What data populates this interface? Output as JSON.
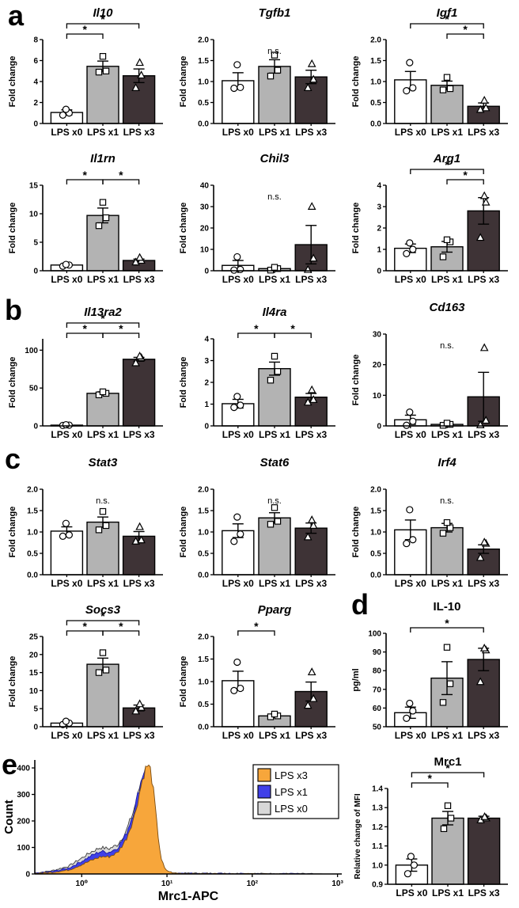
{
  "panels": {
    "a": "a",
    "b": "b",
    "c": "c",
    "d": "d",
    "e": "e"
  },
  "categories": [
    "LPS x0",
    "LPS x1",
    "LPS x3"
  ],
  "marker_shapes": [
    "circle",
    "square",
    "triangle"
  ],
  "colors": {
    "bar_fills": [
      "#ffffff",
      "#b3b3b3",
      "#3e3336"
    ],
    "bar_stroke": "#000000",
    "hist_orange": "#F7A63B",
    "hist_blue": "#4040E8",
    "hist_gray": "#D8D8D8"
  },
  "chart_data": [
    {
      "type": "bar",
      "panel": "a",
      "title": "Il10",
      "italic": true,
      "ylabel": "Fold change",
      "ylim": [
        0,
        8
      ],
      "yticks": [
        0,
        2,
        4,
        6,
        8
      ],
      "values": [
        1.05,
        5.45,
        4.55
      ],
      "errors": [
        0.25,
        0.5,
        0.65
      ],
      "points": [
        [
          0.8,
          1.0,
          1.35
        ],
        [
          4.9,
          5.0,
          6.4
        ],
        [
          3.4,
          4.6,
          5.8
        ]
      ],
      "sig": [
        {
          "a": 0,
          "b": 1,
          "label": "*",
          "level": 0
        },
        {
          "a": 0,
          "b": 2,
          "label": "*",
          "level": 1
        }
      ],
      "ns_label": null
    },
    {
      "type": "bar",
      "panel": "a",
      "title": "Tgfb1",
      "italic": true,
      "ylabel": "Fold change",
      "ylim": [
        0,
        2
      ],
      "yticks": [
        0,
        0.5,
        1,
        1.5,
        2
      ],
      "values": [
        1.02,
        1.36,
        1.11
      ],
      "errors": [
        0.19,
        0.16,
        0.16
      ],
      "points": [
        [
          0.84,
          0.86,
          1.4
        ],
        [
          1.13,
          1.27,
          1.63
        ],
        [
          0.85,
          1.05,
          1.42
        ]
      ],
      "sig": [],
      "ns_label": "n.s."
    },
    {
      "type": "bar",
      "panel": "a",
      "title": "Igf1",
      "italic": true,
      "ylabel": "Fold change",
      "ylim": [
        0,
        2
      ],
      "yticks": [
        0,
        0.5,
        1,
        1.5,
        2
      ],
      "values": [
        1.04,
        0.91,
        0.41
      ],
      "errors": [
        0.2,
        0.1,
        0.08
      ],
      "points": [
        [
          0.78,
          0.85,
          1.45
        ],
        [
          0.8,
          0.83,
          1.1
        ],
        [
          0.33,
          0.37,
          0.55
        ]
      ],
      "sig": [
        {
          "a": 0,
          "b": 2,
          "label": "*",
          "level": 1
        },
        {
          "a": 1,
          "b": 2,
          "label": "*",
          "level": 0
        }
      ],
      "ns_label": null
    },
    {
      "type": "bar",
      "panel": "a",
      "title": "Il1rn",
      "italic": true,
      "ylabel": "Fold change",
      "ylim": [
        0,
        15
      ],
      "yticks": [
        0,
        5,
        10,
        15
      ],
      "values": [
        1.0,
        9.7,
        1.8
      ],
      "errors": [
        0.15,
        1.3,
        0.25
      ],
      "points": [
        [
          0.8,
          1.0,
          1.1
        ],
        [
          7.9,
          9.3,
          12.0
        ],
        [
          1.5,
          1.8,
          2.3
        ]
      ],
      "sig": [
        {
          "a": 0,
          "b": 1,
          "label": "*",
          "level": 0
        },
        {
          "a": 1,
          "b": 2,
          "label": "*",
          "level": 0
        }
      ],
      "ns_label": null
    },
    {
      "type": "bar",
      "panel": "a",
      "title": "Chil3",
      "italic": true,
      "ylabel": "Fold change",
      "ylim": [
        0,
        40
      ],
      "yticks": [
        0,
        10,
        20,
        30,
        40
      ],
      "values": [
        2.5,
        1.0,
        12.2
      ],
      "errors": [
        2.3,
        0.6,
        9.0
      ],
      "points": [
        [
          0.3,
          0.6,
          6.5
        ],
        [
          0.3,
          1.0,
          1.6
        ],
        [
          0.5,
          5.8,
          30.0
        ]
      ],
      "sig": [],
      "ns_label": "n.s."
    },
    {
      "type": "bar",
      "panel": "a",
      "title": "Arg1",
      "italic": true,
      "ylabel": "Fold change",
      "ylim": [
        0,
        4
      ],
      "yticks": [
        0,
        1,
        2,
        3,
        4
      ],
      "values": [
        1.05,
        1.12,
        2.8
      ],
      "errors": [
        0.2,
        0.25,
        0.62
      ],
      "points": [
        [
          0.8,
          1.0,
          1.3
        ],
        [
          0.65,
          1.35,
          1.45
        ],
        [
          1.55,
          3.2,
          3.5
        ]
      ],
      "sig": [
        {
          "a": 0,
          "b": 2,
          "label": "*",
          "level": 1
        },
        {
          "a": 1,
          "b": 2,
          "label": "*",
          "level": 0
        }
      ],
      "ns_label": null
    },
    {
      "type": "bar",
      "panel": "b",
      "title": "Il13ra2",
      "italic": true,
      "ylabel": "Fold change",
      "ylim": [
        0,
        115
      ],
      "yticks": [
        0,
        50,
        100
      ],
      "values": [
        1.0,
        43.0,
        88.0
      ],
      "errors": [
        0.4,
        2.0,
        2.5
      ],
      "points": [
        [
          0.6,
          1.0,
          1.5
        ],
        [
          41,
          43,
          45
        ],
        [
          83,
          90,
          92
        ]
      ],
      "sig": [
        {
          "a": 0,
          "b": 1,
          "label": "*",
          "level": 0
        },
        {
          "a": 1,
          "b": 2,
          "label": "*",
          "level": 0
        },
        {
          "a": 0,
          "b": 2,
          "label": "*",
          "level": 1
        }
      ],
      "ns_label": null
    },
    {
      "type": "bar",
      "panel": "b",
      "title": "Il4ra",
      "italic": true,
      "ylabel": "Fold change",
      "ylim": [
        0,
        4
      ],
      "yticks": [
        0,
        1,
        2,
        3,
        4
      ],
      "values": [
        1.02,
        2.63,
        1.32
      ],
      "errors": [
        0.2,
        0.3,
        0.17
      ],
      "points": [
        [
          0.85,
          0.95,
          1.35
        ],
        [
          2.1,
          2.5,
          3.2
        ],
        [
          1.08,
          1.2,
          1.65
        ]
      ],
      "sig": [
        {
          "a": 0,
          "b": 1,
          "label": "*",
          "level": 0
        },
        {
          "a": 1,
          "b": 2,
          "label": "*",
          "level": 0
        }
      ],
      "ns_label": null
    },
    {
      "type": "bar",
      "panel": "b",
      "title": "Cd163",
      "italic": true,
      "ylabel": "Fold change",
      "ylim": [
        0,
        30
      ],
      "yticks": [
        0,
        10,
        20,
        30
      ],
      "values": [
        2.0,
        0.5,
        9.5
      ],
      "errors": [
        1.5,
        0.3,
        8.0
      ],
      "points": [
        [
          0.2,
          1.5,
          4.5
        ],
        [
          0.2,
          0.5,
          0.9
        ],
        [
          0.3,
          1.8,
          25.5
        ]
      ],
      "sig": [],
      "ns_label": "n.s."
    },
    {
      "type": "bar",
      "panel": "c",
      "title": "Stat3",
      "italic": true,
      "ylabel": "Fold change",
      "ylim": [
        0,
        2
      ],
      "yticks": [
        0,
        0.5,
        1,
        1.5,
        2
      ],
      "values": [
        1.02,
        1.23,
        0.9
      ],
      "errors": [
        0.1,
        0.12,
        0.11
      ],
      "points": [
        [
          0.9,
          0.93,
          1.2
        ],
        [
          1.05,
          1.15,
          1.48
        ],
        [
          0.78,
          0.81,
          1.12
        ]
      ],
      "sig": [],
      "ns_label": "n.s."
    },
    {
      "type": "bar",
      "panel": "c",
      "title": "Stat6",
      "italic": true,
      "ylabel": "Fold change",
      "ylim": [
        0,
        2
      ],
      "yticks": [
        0,
        0.5,
        1,
        1.5,
        2
      ],
      "values": [
        1.03,
        1.33,
        1.09
      ],
      "errors": [
        0.16,
        0.12,
        0.12
      ],
      "points": [
        [
          0.78,
          0.95,
          1.35
        ],
        [
          1.18,
          1.25,
          1.57
        ],
        [
          0.88,
          1.15,
          1.28
        ]
      ],
      "sig": [],
      "ns_label": "n.s."
    },
    {
      "type": "bar",
      "panel": "c",
      "title": "Irf4",
      "italic": true,
      "ylabel": "Fold change",
      "ylim": [
        0,
        2
      ],
      "yticks": [
        0,
        0.5,
        1,
        1.5,
        2
      ],
      "values": [
        1.05,
        1.1,
        0.6
      ],
      "errors": [
        0.23,
        0.1,
        0.1
      ],
      "points": [
        [
          0.73,
          0.82,
          1.52
        ],
        [
          0.97,
          1.1,
          1.22
        ],
        [
          0.4,
          0.73,
          0.76
        ]
      ],
      "sig": [],
      "ns_label": "n.s."
    },
    {
      "type": "bar",
      "panel": "c",
      "title": "Socs3",
      "italic": true,
      "ylabel": "Fold change",
      "ylim": [
        0,
        25
      ],
      "yticks": [
        0,
        5,
        10,
        15,
        20,
        25
      ],
      "values": [
        1.0,
        17.3,
        5.2
      ],
      "errors": [
        0.35,
        1.7,
        0.8
      ],
      "points": [
        [
          0.6,
          1.0,
          1.5
        ],
        [
          15.0,
          15.7,
          20.5
        ],
        [
          4.3,
          5.3,
          6.3
        ]
      ],
      "sig": [
        {
          "a": 0,
          "b": 1,
          "label": "*",
          "level": 0
        },
        {
          "a": 1,
          "b": 2,
          "label": "*",
          "level": 0
        },
        {
          "a": 0,
          "b": 2,
          "label": "*",
          "level": 1
        }
      ],
      "ns_label": null
    },
    {
      "type": "bar",
      "panel": "c",
      "title": "Pparg",
      "italic": true,
      "ylabel": "Fold change",
      "ylim": [
        0,
        2
      ],
      "yticks": [
        0,
        0.5,
        1,
        1.5,
        2
      ],
      "values": [
        1.02,
        0.24,
        0.78
      ],
      "errors": [
        0.21,
        0.03,
        0.21
      ],
      "points": [
        [
          0.8,
          0.85,
          1.43
        ],
        [
          0.22,
          0.24,
          0.28
        ],
        [
          0.47,
          0.62,
          1.21
        ]
      ],
      "sig": [
        {
          "a": 0,
          "b": 1,
          "label": "*",
          "level": 0
        }
      ],
      "ns_label": null
    },
    {
      "type": "bar",
      "panel": "d",
      "title": "IL-10",
      "italic": false,
      "ylabel": "pg/ml",
      "ylim": [
        50,
        100
      ],
      "yticks": [
        50,
        60,
        70,
        80,
        90,
        100
      ],
      "values": [
        57.5,
        76,
        86
      ],
      "errors": [
        3,
        8.8,
        6
      ],
      "points": [
        [
          54.5,
          58.5,
          62.5
        ],
        [
          63,
          73,
          92.5
        ],
        [
          74,
          91,
          92
        ]
      ],
      "sig": [
        {
          "a": 0,
          "b": 2,
          "label": "*",
          "level": 0
        }
      ],
      "ns_label": null
    },
    {
      "type": "histogram",
      "panel": "e",
      "title": "",
      "xlabel": "Mrc1-APC",
      "ylabel": "Count",
      "xlog_range": [
        -0.55,
        3.05
      ],
      "xticks_log": [
        0,
        1,
        2,
        3
      ],
      "xtick_labels": [
        "10⁰",
        "10¹",
        "10²",
        "10³"
      ],
      "ylim": [
        0,
        430
      ],
      "yticks": [
        0,
        100,
        200,
        300,
        400
      ],
      "legend": [
        {
          "label": "LPS x3",
          "color": "#F7A63B"
        },
        {
          "label": "LPS x1",
          "color": "#4040E8"
        },
        {
          "label": "LPS x0",
          "color": "#D8D8D8"
        }
      ],
      "series": [
        {
          "name": "LPS x0",
          "color": "#D8D8D8",
          "stroke": "#3a3a3a",
          "points": [
            [
              -0.55,
              3
            ],
            [
              -0.35,
              12
            ],
            [
              -0.15,
              30
            ],
            [
              0,
              60
            ],
            [
              0.12,
              85
            ],
            [
              0.22,
              100
            ],
            [
              0.32,
              95
            ],
            [
              0.42,
              110
            ],
            [
              0.52,
              160
            ],
            [
              0.6,
              230
            ],
            [
              0.66,
              300
            ],
            [
              0.7,
              360
            ],
            [
              0.74,
              400
            ],
            [
              0.78,
              370
            ],
            [
              0.82,
              250
            ],
            [
              0.86,
              120
            ],
            [
              0.9,
              40
            ],
            [
              0.95,
              12
            ],
            [
              1.05,
              3
            ],
            [
              3.05,
              0
            ]
          ]
        },
        {
          "name": "LPS x1",
          "color": "#4040E8",
          "stroke": "#1a1aa0",
          "points": [
            [
              -0.55,
              2
            ],
            [
              -0.35,
              9
            ],
            [
              -0.15,
              22
            ],
            [
              0,
              48
            ],
            [
              0.12,
              70
            ],
            [
              0.22,
              85
            ],
            [
              0.32,
              82
            ],
            [
              0.42,
              98
            ],
            [
              0.52,
              150
            ],
            [
              0.6,
              225
            ],
            [
              0.66,
              300
            ],
            [
              0.71,
              370
            ],
            [
              0.75,
              405
            ],
            [
              0.79,
              375
            ],
            [
              0.83,
              260
            ],
            [
              0.87,
              130
            ],
            [
              0.91,
              45
            ],
            [
              0.96,
              12
            ],
            [
              1.05,
              2
            ],
            [
              3.05,
              0
            ]
          ]
        },
        {
          "name": "LPS x3",
          "color": "#F7A63B",
          "stroke": "#7a4c12",
          "points": [
            [
              -0.55,
              2
            ],
            [
              -0.35,
              6
            ],
            [
              -0.15,
              15
            ],
            [
              0,
              35
            ],
            [
              0.12,
              52
            ],
            [
              0.22,
              65
            ],
            [
              0.32,
              65
            ],
            [
              0.42,
              80
            ],
            [
              0.52,
              130
            ],
            [
              0.62,
              220
            ],
            [
              0.68,
              310
            ],
            [
              0.73,
              380
            ],
            [
              0.77,
              410
            ],
            [
              0.81,
              390
            ],
            [
              0.85,
              290
            ],
            [
              0.89,
              160
            ],
            [
              0.93,
              60
            ],
            [
              0.98,
              15
            ],
            [
              1.08,
              3
            ],
            [
              1.3,
              1
            ],
            [
              3.05,
              0
            ]
          ]
        }
      ]
    },
    {
      "type": "bar",
      "panel": "e",
      "title": "Mrc1",
      "italic": false,
      "ylabel": "Relative change of MFI",
      "ylim": [
        0.9,
        1.4
      ],
      "yticks": [
        0.9,
        1.0,
        1.1,
        1.2,
        1.3,
        1.4
      ],
      "values": [
        1.0,
        1.245,
        1.245
      ],
      "errors": [
        0.032,
        0.035,
        0.01
      ],
      "points": [
        [
          0.955,
          1.0,
          1.045
        ],
        [
          1.19,
          1.245,
          1.31
        ],
        [
          1.235,
          1.245,
          1.252
        ]
      ],
      "sig": [
        {
          "a": 0,
          "b": 1,
          "label": "*",
          "level": 0
        },
        {
          "a": 0,
          "b": 2,
          "label": "*",
          "level": 1
        }
      ],
      "ns_label": null
    }
  ]
}
